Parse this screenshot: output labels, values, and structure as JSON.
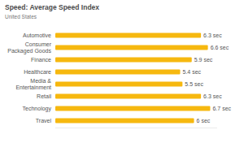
{
  "chart_data": {
    "type": "bar",
    "orientation": "horizontal",
    "title": "Speed: Average Speed Index",
    "subtitle": "United States",
    "categories": [
      "Automotive",
      "Consumer Packaged Goods",
      "Finance",
      "Healthcare",
      "Media & Entertainment",
      "Retail",
      "Technology",
      "Travel"
    ],
    "values": [
      6.3,
      6.6,
      5.9,
      5.4,
      5.5,
      6.3,
      6.7,
      6
    ],
    "value_labels": [
      "6.3 sec",
      "6.6 sec",
      "5.9 sec",
      "5.4 sec",
      "5.5 sec",
      "6.3 sec",
      "6.7 sec",
      "6 sec"
    ],
    "color": "#f6b80f",
    "xlim": [
      0,
      7
    ],
    "data_labels": true,
    "tick_labels": "y",
    "grid": false
  }
}
